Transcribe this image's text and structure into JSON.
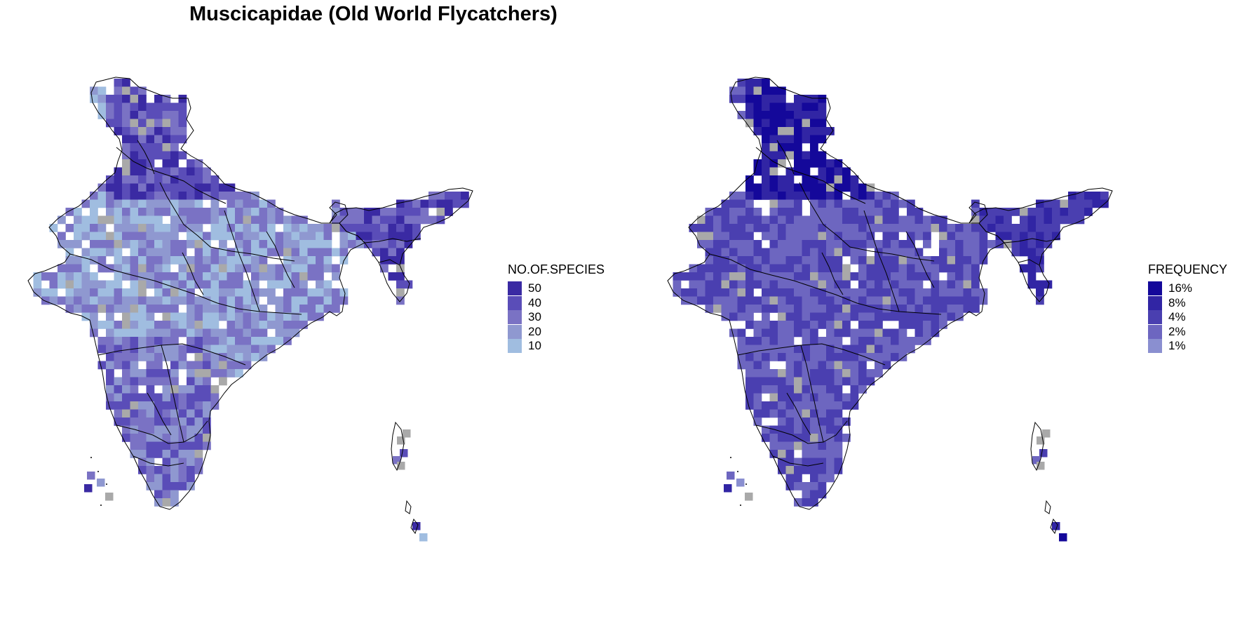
{
  "title": "Muscicapidae (Old World Flycatchers)",
  "maps": [
    {
      "legend_title": "NO.OF.SPECIES",
      "legend": [
        {
          "label": "50",
          "color": "#3a2aa3"
        },
        {
          "label": "40",
          "color": "#5a4db8"
        },
        {
          "label": "30",
          "color": "#7a72c4"
        },
        {
          "label": "20",
          "color": "#8f98d0"
        },
        {
          "label": "10",
          "color": "#a0bde0"
        }
      ]
    },
    {
      "legend_title": "FREQUENCY",
      "legend": [
        {
          "label": "16%",
          "color": "#14089a"
        },
        {
          "label": "8%",
          "color": "#3125a4"
        },
        {
          "label": "4%",
          "color": "#4a3fb0"
        },
        {
          "label": "2%",
          "color": "#6d66c0"
        },
        {
          "label": "1%",
          "color": "#8a8fd0"
        }
      ]
    }
  ],
  "no_data_color": "#a9a9a9",
  "outline_color": "#000000"
}
